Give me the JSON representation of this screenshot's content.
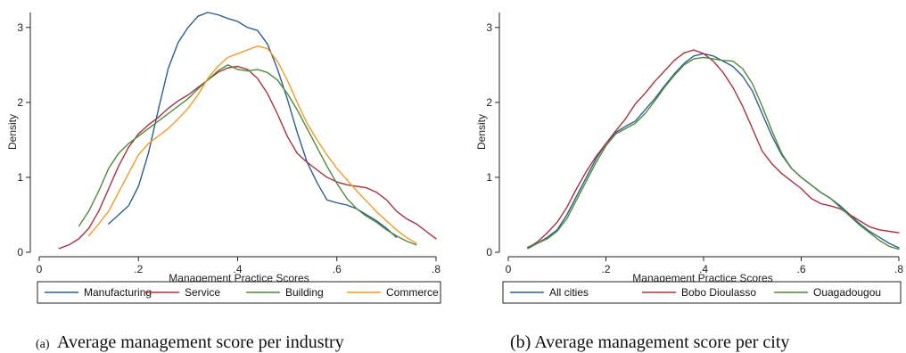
{
  "figure": {
    "caption_a_mark": "(a)",
    "caption_a": "Average management score per industry",
    "caption_b": "(b) Average management score per city"
  },
  "chart_data": [
    {
      "type": "line",
      "title": "",
      "xlabel": "Management Practice Scores",
      "ylabel": "Density",
      "xlim": [
        0,
        0.8
      ],
      "ylim": [
        0,
        3.2
      ],
      "xticks": [
        0,
        0.2,
        0.4,
        0.6,
        0.8
      ],
      "xtick_labels": [
        "0",
        ".2",
        ".4",
        ".6",
        ".8"
      ],
      "yticks": [
        0,
        1,
        2,
        3
      ],
      "ytick_labels": [
        "0",
        "1",
        "2",
        "3"
      ],
      "grid": false,
      "legend_position": "bottom",
      "series": [
        {
          "name": "Manufacturing",
          "color": "#2e5f8f",
          "x": [
            0.14,
            0.16,
            0.18,
            0.2,
            0.22,
            0.24,
            0.26,
            0.28,
            0.3,
            0.32,
            0.34,
            0.36,
            0.38,
            0.4,
            0.42,
            0.44,
            0.46,
            0.48,
            0.5,
            0.52,
            0.54,
            0.56,
            0.58,
            0.6,
            0.62,
            0.64,
            0.66,
            0.68,
            0.7,
            0.72
          ],
          "y": [
            0.38,
            0.5,
            0.62,
            0.88,
            1.32,
            1.9,
            2.45,
            2.8,
            3.0,
            3.15,
            3.2,
            3.17,
            3.12,
            3.08,
            3.0,
            2.96,
            2.78,
            2.45,
            2.05,
            1.6,
            1.2,
            0.93,
            0.7,
            0.66,
            0.63,
            0.58,
            0.5,
            0.42,
            0.32,
            0.2
          ]
        },
        {
          "name": "Service",
          "color": "#a83240",
          "x": [
            0.04,
            0.06,
            0.08,
            0.1,
            0.12,
            0.14,
            0.16,
            0.18,
            0.2,
            0.22,
            0.24,
            0.26,
            0.28,
            0.3,
            0.32,
            0.34,
            0.36,
            0.38,
            0.4,
            0.42,
            0.44,
            0.46,
            0.48,
            0.5,
            0.52,
            0.54,
            0.56,
            0.58,
            0.6,
            0.62,
            0.64,
            0.66,
            0.68,
            0.7,
            0.72,
            0.74,
            0.76,
            0.78,
            0.8
          ],
          "y": [
            0.05,
            0.1,
            0.18,
            0.32,
            0.55,
            0.85,
            1.15,
            1.4,
            1.58,
            1.7,
            1.8,
            1.92,
            2.02,
            2.1,
            2.2,
            2.3,
            2.4,
            2.46,
            2.48,
            2.44,
            2.32,
            2.12,
            1.85,
            1.55,
            1.32,
            1.2,
            1.1,
            1.0,
            0.94,
            0.9,
            0.88,
            0.86,
            0.8,
            0.7,
            0.55,
            0.45,
            0.38,
            0.28,
            0.18
          ]
        },
        {
          "name": "Building",
          "color": "#4f8a3c",
          "x": [
            0.08,
            0.1,
            0.12,
            0.14,
            0.16,
            0.18,
            0.2,
            0.22,
            0.24,
            0.26,
            0.28,
            0.3,
            0.32,
            0.34,
            0.36,
            0.38,
            0.4,
            0.42,
            0.44,
            0.46,
            0.48,
            0.5,
            0.52,
            0.54,
            0.56,
            0.58,
            0.6,
            0.62,
            0.64,
            0.66,
            0.68,
            0.7,
            0.72,
            0.74,
            0.76
          ],
          "y": [
            0.35,
            0.55,
            0.82,
            1.12,
            1.32,
            1.45,
            1.55,
            1.65,
            1.75,
            1.85,
            1.95,
            2.05,
            2.18,
            2.3,
            2.42,
            2.5,
            2.44,
            2.42,
            2.44,
            2.4,
            2.3,
            2.12,
            1.9,
            1.65,
            1.4,
            1.15,
            0.92,
            0.72,
            0.58,
            0.48,
            0.4,
            0.3,
            0.22,
            0.15,
            0.1
          ]
        },
        {
          "name": "Commerce",
          "color": "#f29b2a",
          "x": [
            0.1,
            0.12,
            0.14,
            0.16,
            0.18,
            0.2,
            0.22,
            0.24,
            0.26,
            0.28,
            0.3,
            0.32,
            0.34,
            0.36,
            0.38,
            0.4,
            0.42,
            0.44,
            0.46,
            0.48,
            0.5,
            0.52,
            0.54,
            0.56,
            0.58,
            0.6,
            0.62,
            0.64,
            0.66,
            0.68,
            0.7,
            0.72,
            0.74,
            0.76
          ],
          "y": [
            0.22,
            0.38,
            0.55,
            0.8,
            1.05,
            1.3,
            1.45,
            1.55,
            1.65,
            1.78,
            1.92,
            2.1,
            2.32,
            2.48,
            2.6,
            2.65,
            2.7,
            2.75,
            2.72,
            2.55,
            2.3,
            2.0,
            1.72,
            1.5,
            1.3,
            1.12,
            0.97,
            0.82,
            0.68,
            0.54,
            0.42,
            0.3,
            0.2,
            0.12
          ]
        }
      ]
    },
    {
      "type": "line",
      "title": "",
      "xlabel": "Management Practice Scores",
      "ylabel": "Density",
      "xlim": [
        0,
        0.8
      ],
      "ylim": [
        0,
        3.2
      ],
      "xticks": [
        0,
        0.2,
        0.4,
        0.6,
        0.8
      ],
      "xtick_labels": [
        "0",
        ".2",
        ".4",
        ".6",
        ".8"
      ],
      "yticks": [
        0,
        1,
        2,
        3
      ],
      "ytick_labels": [
        "0",
        "1",
        "2",
        "3"
      ],
      "grid": false,
      "legend_position": "bottom",
      "series": [
        {
          "name": "All cities",
          "color": "#2e5f8f",
          "x": [
            0.04,
            0.06,
            0.08,
            0.1,
            0.12,
            0.14,
            0.16,
            0.18,
            0.2,
            0.22,
            0.24,
            0.26,
            0.28,
            0.3,
            0.32,
            0.34,
            0.36,
            0.38,
            0.4,
            0.42,
            0.44,
            0.46,
            0.48,
            0.5,
            0.52,
            0.54,
            0.56,
            0.58,
            0.6,
            0.62,
            0.64,
            0.66,
            0.68,
            0.7,
            0.72,
            0.74,
            0.76,
            0.78,
            0.8
          ],
          "y": [
            0.05,
            0.12,
            0.2,
            0.3,
            0.5,
            0.75,
            1.0,
            1.25,
            1.45,
            1.6,
            1.68,
            1.75,
            1.9,
            2.05,
            2.22,
            2.38,
            2.52,
            2.62,
            2.65,
            2.62,
            2.55,
            2.48,
            2.35,
            2.15,
            1.85,
            1.55,
            1.3,
            1.12,
            1.0,
            0.9,
            0.8,
            0.72,
            0.62,
            0.5,
            0.38,
            0.28,
            0.2,
            0.12,
            0.06
          ]
        },
        {
          "name": "Bobo Dioulasso",
          "color": "#a83240",
          "x": [
            0.04,
            0.06,
            0.08,
            0.1,
            0.12,
            0.14,
            0.16,
            0.18,
            0.2,
            0.22,
            0.24,
            0.26,
            0.28,
            0.3,
            0.32,
            0.34,
            0.36,
            0.38,
            0.4,
            0.42,
            0.44,
            0.46,
            0.48,
            0.5,
            0.52,
            0.54,
            0.56,
            0.58,
            0.6,
            0.62,
            0.64,
            0.66,
            0.68,
            0.7,
            0.72,
            0.74,
            0.76,
            0.78,
            0.8
          ],
          "y": [
            0.06,
            0.14,
            0.26,
            0.4,
            0.6,
            0.85,
            1.08,
            1.28,
            1.45,
            1.62,
            1.78,
            1.98,
            2.12,
            2.28,
            2.42,
            2.56,
            2.66,
            2.7,
            2.65,
            2.55,
            2.4,
            2.2,
            1.95,
            1.65,
            1.35,
            1.18,
            1.05,
            0.95,
            0.85,
            0.72,
            0.65,
            0.62,
            0.58,
            0.5,
            0.42,
            0.34,
            0.3,
            0.28,
            0.26
          ]
        },
        {
          "name": "Ouagadougou",
          "color": "#4f8a3c",
          "x": [
            0.04,
            0.06,
            0.08,
            0.1,
            0.12,
            0.14,
            0.16,
            0.18,
            0.2,
            0.22,
            0.24,
            0.26,
            0.28,
            0.3,
            0.32,
            0.34,
            0.36,
            0.38,
            0.4,
            0.42,
            0.44,
            0.46,
            0.48,
            0.5,
            0.52,
            0.54,
            0.56,
            0.58,
            0.6,
            0.62,
            0.64,
            0.66,
            0.68,
            0.7,
            0.72,
            0.74,
            0.76,
            0.78,
            0.8
          ],
          "y": [
            0.07,
            0.12,
            0.18,
            0.28,
            0.45,
            0.7,
            0.95,
            1.2,
            1.42,
            1.58,
            1.65,
            1.72,
            1.85,
            2.02,
            2.2,
            2.36,
            2.5,
            2.58,
            2.6,
            2.58,
            2.56,
            2.55,
            2.45,
            2.25,
            1.95,
            1.62,
            1.32,
            1.12,
            1.0,
            0.9,
            0.8,
            0.72,
            0.6,
            0.48,
            0.36,
            0.26,
            0.16,
            0.08,
            0.04
          ]
        }
      ]
    }
  ]
}
